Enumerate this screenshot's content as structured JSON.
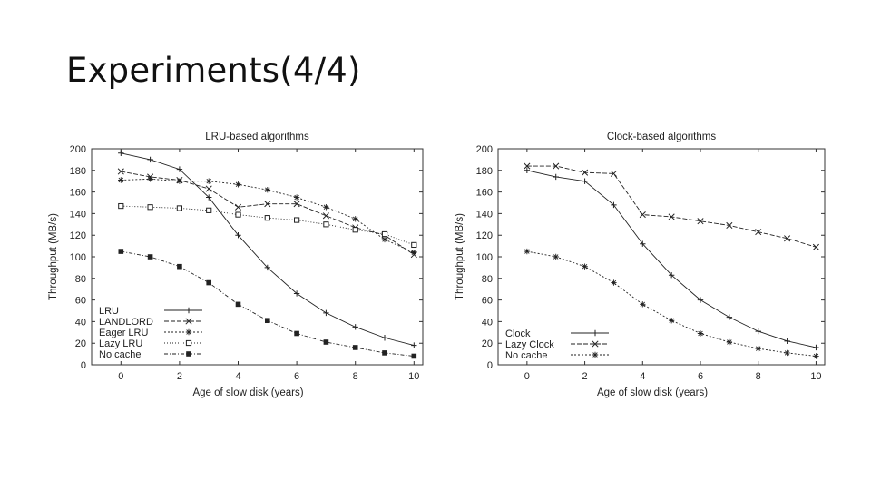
{
  "slide": {
    "title": "Experiments(4/4)"
  },
  "colors": {
    "line": "#222222",
    "frame": "#333333",
    "background": "#ffffff"
  },
  "chart_data": [
    {
      "type": "line",
      "title": "LRU-based algorithms",
      "xlabel": "Age of slow disk (years)",
      "ylabel": "Throughput (MB/s)",
      "xlim": [
        -1,
        10.3
      ],
      "ylim": [
        0,
        200
      ],
      "xticks": [
        "0",
        "2",
        "4",
        "6",
        "8",
        "10"
      ],
      "yticks": [
        "0",
        "20",
        "40",
        "60",
        "80",
        "100",
        "120",
        "140",
        "160",
        "180",
        "200"
      ],
      "legend_position": "bottom-left",
      "x": [
        0,
        1,
        2,
        3,
        4,
        5,
        6,
        7,
        8,
        9,
        10
      ],
      "series": [
        {
          "name": "LRU",
          "marker": "plus",
          "dash": "",
          "values": [
            196,
            190,
            181,
            155,
            120,
            90,
            66,
            48,
            35,
            25,
            18
          ]
        },
        {
          "name": "LANDLORD",
          "marker": "x",
          "dash": "5 2",
          "values": [
            179,
            174,
            171,
            163,
            146,
            149,
            149,
            138,
            127,
            120,
            102
          ]
        },
        {
          "name": "Eager LRU",
          "marker": "star",
          "dash": "2 2",
          "values": [
            171,
            172,
            170,
            170,
            167,
            162,
            155,
            146,
            135,
            116,
            104
          ]
        },
        {
          "name": "Lazy LRU",
          "marker": "square-open",
          "dash": "1 2",
          "values": [
            147,
            146,
            145,
            143,
            139,
            136,
            134,
            130,
            125,
            121,
            111
          ]
        },
        {
          "name": "No cache",
          "marker": "square-filled",
          "dash": "4 2 1 2",
          "values": [
            105,
            100,
            91,
            76,
            56,
            41,
            29,
            21,
            16,
            11,
            8
          ]
        }
      ]
    },
    {
      "type": "line",
      "title": "Clock-based algorithms",
      "xlabel": "Age of slow disk (years)",
      "ylabel": "Throughput (MB/s)",
      "xlim": [
        -1,
        10.3
      ],
      "ylim": [
        0,
        200
      ],
      "xticks": [
        "0",
        "2",
        "4",
        "6",
        "8",
        "10"
      ],
      "yticks": [
        "0",
        "20",
        "40",
        "60",
        "80",
        "100",
        "120",
        "140",
        "160",
        "180",
        "200"
      ],
      "legend_position": "bottom-left",
      "x": [
        0,
        1,
        2,
        3,
        4,
        5,
        6,
        7,
        8,
        9,
        10
      ],
      "series": [
        {
          "name": "Clock",
          "marker": "plus",
          "dash": "",
          "values": [
            180,
            174,
            170,
            148,
            112,
            83,
            60,
            44,
            31,
            22,
            16
          ]
        },
        {
          "name": "Lazy Clock",
          "marker": "x",
          "dash": "5 2",
          "values": [
            184,
            184,
            178,
            177,
            139,
            137,
            133,
            129,
            123,
            117,
            109
          ]
        },
        {
          "name": "No cache",
          "marker": "star",
          "dash": "2 2",
          "values": [
            105,
            100,
            91,
            76,
            56,
            41,
            29,
            21,
            15,
            11,
            8
          ]
        }
      ]
    }
  ]
}
